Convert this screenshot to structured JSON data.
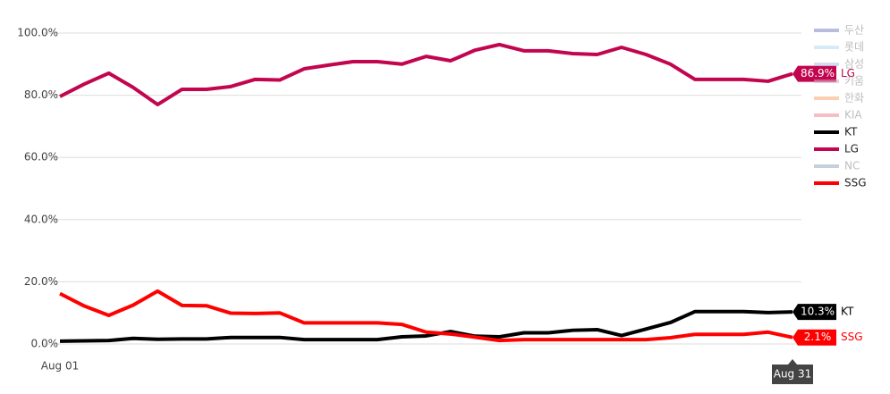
{
  "chart_data": {
    "type": "line",
    "categories": [
      "Aug 01",
      null,
      null,
      null,
      null,
      null,
      null,
      null,
      null,
      null,
      null,
      null,
      null,
      null,
      null,
      null,
      null,
      null,
      null,
      null,
      null,
      null,
      null,
      null,
      null,
      null,
      null,
      null,
      null,
      null,
      "Aug 31"
    ],
    "ylim": [
      0,
      100
    ],
    "yticks": [
      {
        "value": 0,
        "label": "0.0%"
      },
      {
        "value": 20,
        "label": "20.0%"
      },
      {
        "value": 40,
        "label": "40.0%"
      },
      {
        "value": 60,
        "label": "60.0%"
      },
      {
        "value": 80,
        "label": "80.0%"
      },
      {
        "value": 100,
        "label": "100.0%"
      }
    ],
    "grid": true,
    "legend": "right",
    "hidden_series": [
      {
        "name": "두산",
        "color": "#8086c4"
      },
      {
        "name": "롯데",
        "color": "#b3def2"
      },
      {
        "name": "삼성",
        "color": "#b7bde8"
      },
      {
        "name": "키움",
        "color": "#d9a7c4"
      },
      {
        "name": "한화",
        "color": "#f9a873"
      },
      {
        "name": "KIA",
        "color": "#f08898"
      }
    ],
    "series": [
      {
        "name": "KT",
        "color": "#000000",
        "values": [
          0.9,
          1.0,
          1.1,
          1.8,
          1.5,
          1.6,
          1.6,
          2.1,
          2.1,
          2.1,
          1.4,
          1.4,
          1.4,
          1.4,
          2.3,
          2.6,
          4.0,
          2.5,
          2.3,
          3.6,
          3.6,
          4.4,
          4.6,
          2.7,
          4.8,
          6.9,
          10.4,
          10.4,
          10.4,
          10.1,
          10.3
        ],
        "value_labels": {
          "30": "10.3%"
        }
      },
      {
        "name": "LG",
        "color": "#c2054f",
        "values": [
          79.6,
          83.6,
          87.1,
          82.5,
          77.0,
          81.9,
          81.9,
          82.8,
          85.1,
          84.9,
          88.5,
          89.7,
          90.8,
          90.8,
          90.0,
          92.5,
          91.1,
          94.5,
          96.3,
          94.3,
          94.3,
          93.4,
          93.1,
          95.4,
          93.1,
          90.0,
          85.1,
          85.1,
          85.1,
          84.5,
          86.9
        ],
        "value_labels": {
          "30": "86.9%"
        }
      },
      {
        "name": "NC",
        "color": "#9aa8c2",
        "hidden": true
      },
      {
        "name": "SSG",
        "color": "#ff0000",
        "values": [
          16.2,
          12.2,
          9.2,
          12.5,
          17.0,
          12.4,
          12.3,
          9.9,
          9.8,
          10.0,
          6.8,
          6.8,
          6.8,
          6.8,
          6.3,
          3.8,
          3.2,
          2.2,
          1.1,
          1.4,
          1.4,
          1.4,
          1.4,
          1.4,
          1.4,
          2.0,
          3.1,
          3.1,
          3.1,
          3.8,
          2.1
        ],
        "value_labels": {
          "30": "2.1%"
        }
      }
    ]
  }
}
